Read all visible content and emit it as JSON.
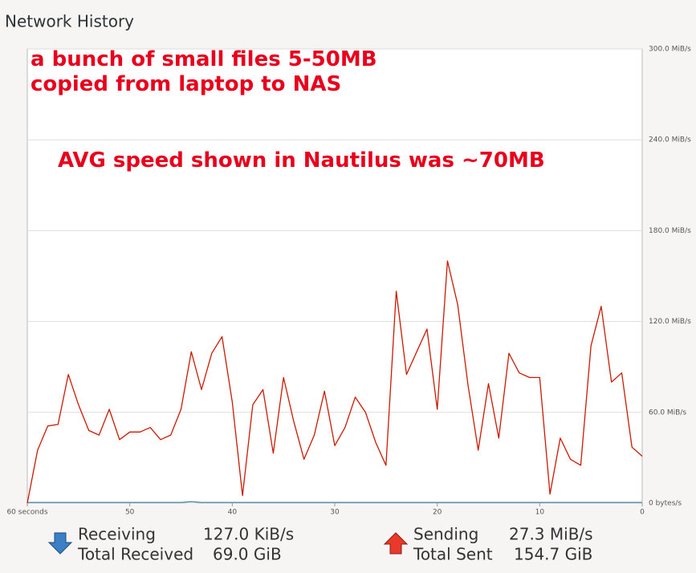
{
  "header": {
    "title": "Network History"
  },
  "chart_data": {
    "type": "line",
    "annotations": [
      "a bunch of small files 5-50MB",
      "copied from laptop to NAS",
      "AVG speed shown in Nautilus was ~70MB"
    ],
    "x": [
      60,
      59,
      58,
      57,
      56,
      55,
      54,
      53,
      52,
      51,
      50,
      49,
      48,
      47,
      46,
      45,
      44,
      43,
      42,
      41,
      40,
      39,
      38,
      37,
      36,
      35,
      34,
      33,
      32,
      31,
      30,
      29,
      28,
      27,
      26,
      25,
      24,
      23,
      22,
      21,
      20,
      19,
      18,
      17,
      16,
      15,
      14,
      13,
      12,
      11,
      10,
      9,
      8,
      7,
      6,
      5,
      4,
      3,
      2,
      1,
      0
    ],
    "xlim": [
      60,
      0
    ],
    "xticks": [
      {
        "value": 60,
        "label": "60 seconds"
      },
      50,
      40,
      30,
      20,
      10,
      0
    ],
    "ylim": [
      0,
      300
    ],
    "yticks": [
      {
        "value": 0,
        "label": "0 bytes/s"
      },
      {
        "value": 60,
        "label": "60.0 MiB/s"
      },
      {
        "value": 120,
        "label": "120.0 MiB/s"
      },
      {
        "value": 180,
        "label": "180.0 MiB/s"
      },
      {
        "value": 240,
        "label": "240.0 MiB/s"
      },
      {
        "value": 300,
        "label": "300.0 MiB/s"
      }
    ],
    "grid": true,
    "series": [
      {
        "name": "Receiving",
        "color": "#3d7fa6",
        "values": [
          0.5,
          0.5,
          0.5,
          0.5,
          0.5,
          0.5,
          0.5,
          0.5,
          0.5,
          0.5,
          0.5,
          0.5,
          0.5,
          0.5,
          0.5,
          0.5,
          1,
          0.5,
          0.5,
          0.5,
          0.5,
          0.5,
          0.5,
          0.5,
          0.5,
          0.5,
          0.5,
          0.5,
          0.5,
          0.5,
          0.5,
          0.5,
          0.5,
          0.5,
          0.5,
          0.5,
          0.5,
          0.5,
          0.5,
          0.5,
          0.5,
          0.5,
          0.5,
          0.5,
          0.5,
          0.5,
          0.5,
          0.5,
          0.5,
          0.5,
          0.5,
          0.5,
          0.5,
          0.5,
          0.5,
          0.5,
          0.5,
          0.5,
          0.5,
          0.5,
          0.5
        ]
      },
      {
        "name": "Sending",
        "color": "#cc1a00",
        "values": [
          0,
          35,
          51,
          52,
          85,
          65,
          48,
          45,
          62,
          42,
          47,
          47,
          50,
          42,
          45,
          62,
          100,
          75,
          99,
          110,
          67,
          5,
          65,
          75,
          33,
          83,
          54,
          29,
          45,
          74,
          38,
          50,
          70,
          60,
          40,
          25,
          140,
          85,
          100,
          115,
          62,
          160,
          131,
          78,
          35,
          79,
          43,
          99,
          86,
          83,
          83,
          6,
          43,
          29,
          25,
          104,
          130,
          80,
          86,
          37,
          31
        ]
      }
    ]
  },
  "footer": {
    "receiving_rate": "127.0 KiB/s",
    "total_received_label": "Total Received",
    "total_received": "69.0 GiB",
    "sending_rate": "27.3 MiB/s",
    "total_sent_label": "Total Sent",
    "total_sent": "154.7 GiB"
  }
}
